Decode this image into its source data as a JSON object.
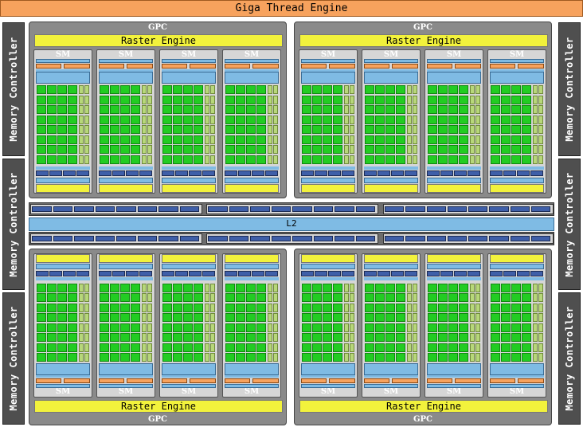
{
  "giga_thread_engine": "Giga Thread Engine",
  "memory_controller_label": "Memory Controller",
  "gpc_label": "GPC",
  "raster_engine_label": "Raster Engine",
  "sm_label": "SM",
  "l2_label": "L2",
  "colors": {
    "core_green": "#22cc22",
    "cache_blue": "#7fbbe4",
    "dark_blue": "#3f5fa8",
    "orange": "#f7a25d",
    "yellow": "#f2f23c",
    "gpc_gray": "#8a8a8a",
    "mc_dark": "#4f4f4f"
  }
}
